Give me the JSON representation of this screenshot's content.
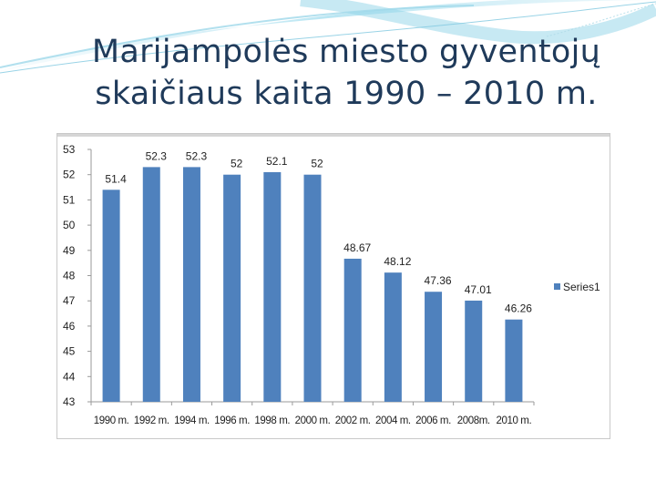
{
  "slide": {
    "title_line1": "Marijampolės miesto gyventojų",
    "title_line2": "skaičiaus kaita 1990 – 2010 m."
  },
  "chart_data": {
    "type": "bar",
    "categories": [
      "1990 m.",
      "1992 m.",
      "1994 m.",
      "1996 m.",
      "1998 m.",
      "2000 m.",
      "2002 m.",
      "2004 m.",
      "2006 m.",
      "2008m.",
      "2010 m."
    ],
    "series": [
      {
        "name": "Series1",
        "values": [
          51.4,
          52.3,
          52.3,
          52,
          52.1,
          52,
          48.67,
          48.12,
          47.36,
          47.01,
          46.26
        ],
        "labels": [
          "51.4",
          "52.3",
          "52.3",
          "52",
          "52.1",
          "52",
          "48.67",
          "48.12",
          "47.36",
          "47.01",
          "46.26"
        ]
      }
    ],
    "ylim": [
      43,
      53
    ],
    "yticks": [
      43,
      44,
      45,
      46,
      47,
      48,
      49,
      50,
      51,
      52,
      53
    ],
    "grid": false,
    "legend": "right",
    "bar_color": "#4f81bd"
  }
}
